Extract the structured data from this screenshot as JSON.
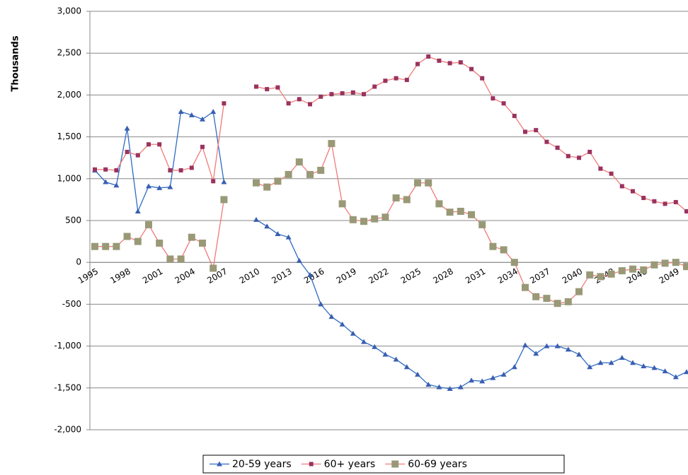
{
  "chart_data": {
    "type": "line",
    "y_label": "Thousands",
    "categories": [
      "1995",
      null,
      null,
      "1998",
      null,
      null,
      "2001",
      null,
      null,
      "2004",
      null,
      null,
      "2007",
      null,
      null,
      "2010",
      null,
      null,
      "2013",
      null,
      null,
      "2016",
      null,
      null,
      "2019",
      null,
      null,
      "2022",
      null,
      null,
      "2025",
      null,
      null,
      "2028",
      null,
      null,
      "2031",
      null,
      null,
      "2034",
      null,
      null,
      "2037",
      null,
      null,
      "2040",
      null,
      null,
      "2043",
      null,
      null,
      "2046",
      null,
      null,
      "2049",
      null
    ],
    "series": [
      {
        "name": "20-59 years",
        "color": "#2f6bc4",
        "marker": "triangle",
        "marker_color": "#3a5fb0",
        "values": [
          1100,
          960,
          920,
          1600,
          610,
          910,
          890,
          900,
          1800,
          1760,
          1710,
          1800,
          960,
          null,
          null,
          510,
          430,
          340,
          300,
          20,
          -150,
          -500,
          -650,
          -740,
          -850,
          -950,
          -1010,
          -1100,
          -1160,
          -1250,
          -1340,
          -1460,
          -1490,
          -1510,
          -1490,
          -1410,
          -1420,
          -1380,
          -1340,
          -1250,
          -990,
          -1090,
          -1000,
          -1000,
          -1040,
          -1100,
          -1250,
          -1200,
          -1200,
          -1140,
          -1200,
          -1240,
          -1260,
          -1300,
          -1370,
          -1310
        ]
      },
      {
        "name": "60+ years",
        "color": "#f07a7a",
        "marker": "square",
        "marker_color": "#99335f",
        "values": [
          1110,
          1110,
          1100,
          1320,
          1280,
          1410,
          1410,
          1100,
          1100,
          1130,
          1380,
          970,
          1900,
          null,
          null,
          2100,
          2070,
          2090,
          1900,
          1950,
          1890,
          1980,
          2010,
          2020,
          2030,
          2010,
          2100,
          2170,
          2200,
          2180,
          2370,
          2460,
          2410,
          2380,
          2390,
          2310,
          2200,
          1960,
          1900,
          1750,
          1560,
          1580,
          1440,
          1370,
          1270,
          1250,
          1320,
          1120,
          1060,
          910,
          850,
          770,
          730,
          700,
          720,
          610
        ]
      },
      {
        "name": "60-69 years",
        "color": "#f07a7a",
        "marker": "big-square",
        "marker_color": "#999977",
        "values": [
          190,
          190,
          190,
          310,
          250,
          450,
          230,
          40,
          40,
          300,
          230,
          -70,
          750,
          null,
          null,
          950,
          900,
          970,
          1050,
          1200,
          1050,
          1100,
          1420,
          700,
          510,
          490,
          520,
          540,
          770,
          750,
          950,
          950,
          700,
          600,
          610,
          570,
          450,
          190,
          150,
          0,
          -300,
          -410,
          -430,
          -490,
          -470,
          -350,
          -150,
          -170,
          -140,
          -100,
          -80,
          -90,
          -30,
          -10,
          0,
          -50
        ]
      }
    ],
    "ylim": [
      -2000,
      3000
    ],
    "yticks": [
      {
        "value": -2000,
        "label": "-2,000"
      },
      {
        "value": -1500,
        "label": "-1,500"
      },
      {
        "value": -1000,
        "label": "-1,000"
      },
      -500,
      0,
      500,
      {
        "value": 1000,
        "label": "1,000"
      },
      {
        "value": 1500,
        "label": "1,500"
      },
      {
        "value": 2000,
        "label": "2,000"
      },
      {
        "value": 2500,
        "label": "2,500"
      },
      {
        "value": 3000,
        "label": "3,000"
      }
    ],
    "grid": true,
    "legend": "bottom"
  }
}
